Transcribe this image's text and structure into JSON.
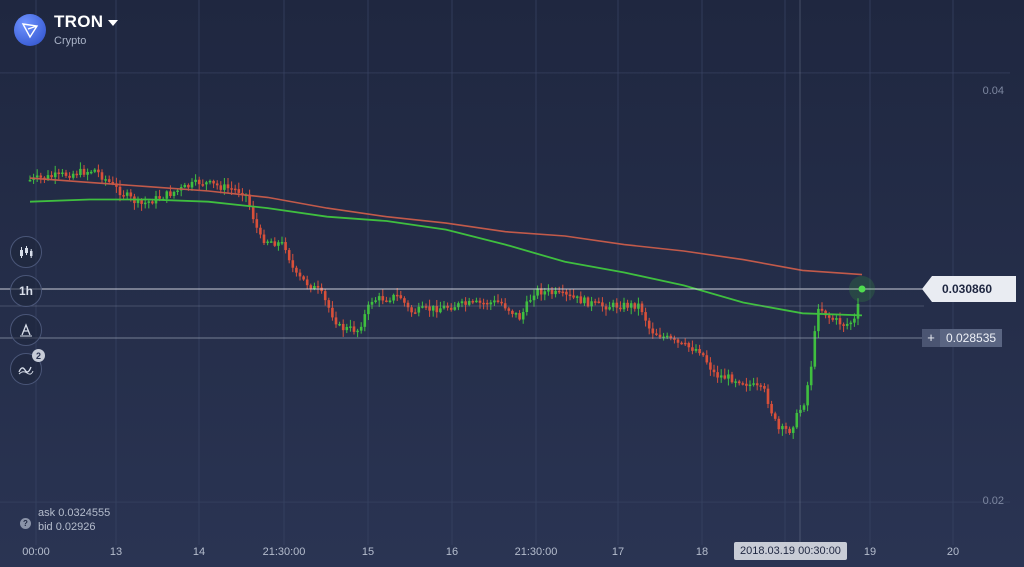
{
  "asset": {
    "name": "TRON",
    "category": "Crypto"
  },
  "toolbar": {
    "timeframe": "1h",
    "indicator_count": "2"
  },
  "price": {
    "current": "0.030860",
    "level": "0.028535"
  },
  "quote": {
    "ask_label": "ask",
    "ask_value": "0.0324555",
    "bid_label": "bid",
    "bid_value": "0.02926"
  },
  "time_badge": "2018.03.19 00:30:00",
  "colors": {
    "background": "#232b45",
    "bullish": "#3fbf3f",
    "bearish": "#d8503a",
    "ma_fast": "#3fbf3f",
    "ma_slow": "#c25a4a"
  },
  "chart_data": {
    "type": "candlestick",
    "y_ticks": [
      "0.04",
      "0.02"
    ],
    "ylim": [
      0.018,
      0.0434
    ],
    "x_labels": [
      "00:00",
      "13",
      "14",
      "21:30:00",
      "15",
      "16",
      "21:30:00",
      "17",
      "18",
      "19",
      "20"
    ],
    "x_labels_last_partial": "19",
    "series": [
      {
        "name": "",
        "kind": "moving_average_fast",
        "color": "#3fbf3f",
        "values": [
          0.034,
          0.0341,
          0.0341,
          0.034,
          0.0337,
          0.0333,
          0.0331,
          0.0327,
          0.032,
          0.0312,
          0.0307,
          0.0301,
          0.0293,
          0.0288,
          0.0287
        ]
      },
      {
        "name": "",
        "kind": "moving_average_slow",
        "color": "#c25a4a",
        "values": [
          0.0351,
          0.0349,
          0.0347,
          0.0345,
          0.0342,
          0.0337,
          0.0333,
          0.033,
          0.0326,
          0.0324,
          0.032,
          0.0317,
          0.0313,
          0.0308,
          0.0306
        ]
      }
    ]
  }
}
